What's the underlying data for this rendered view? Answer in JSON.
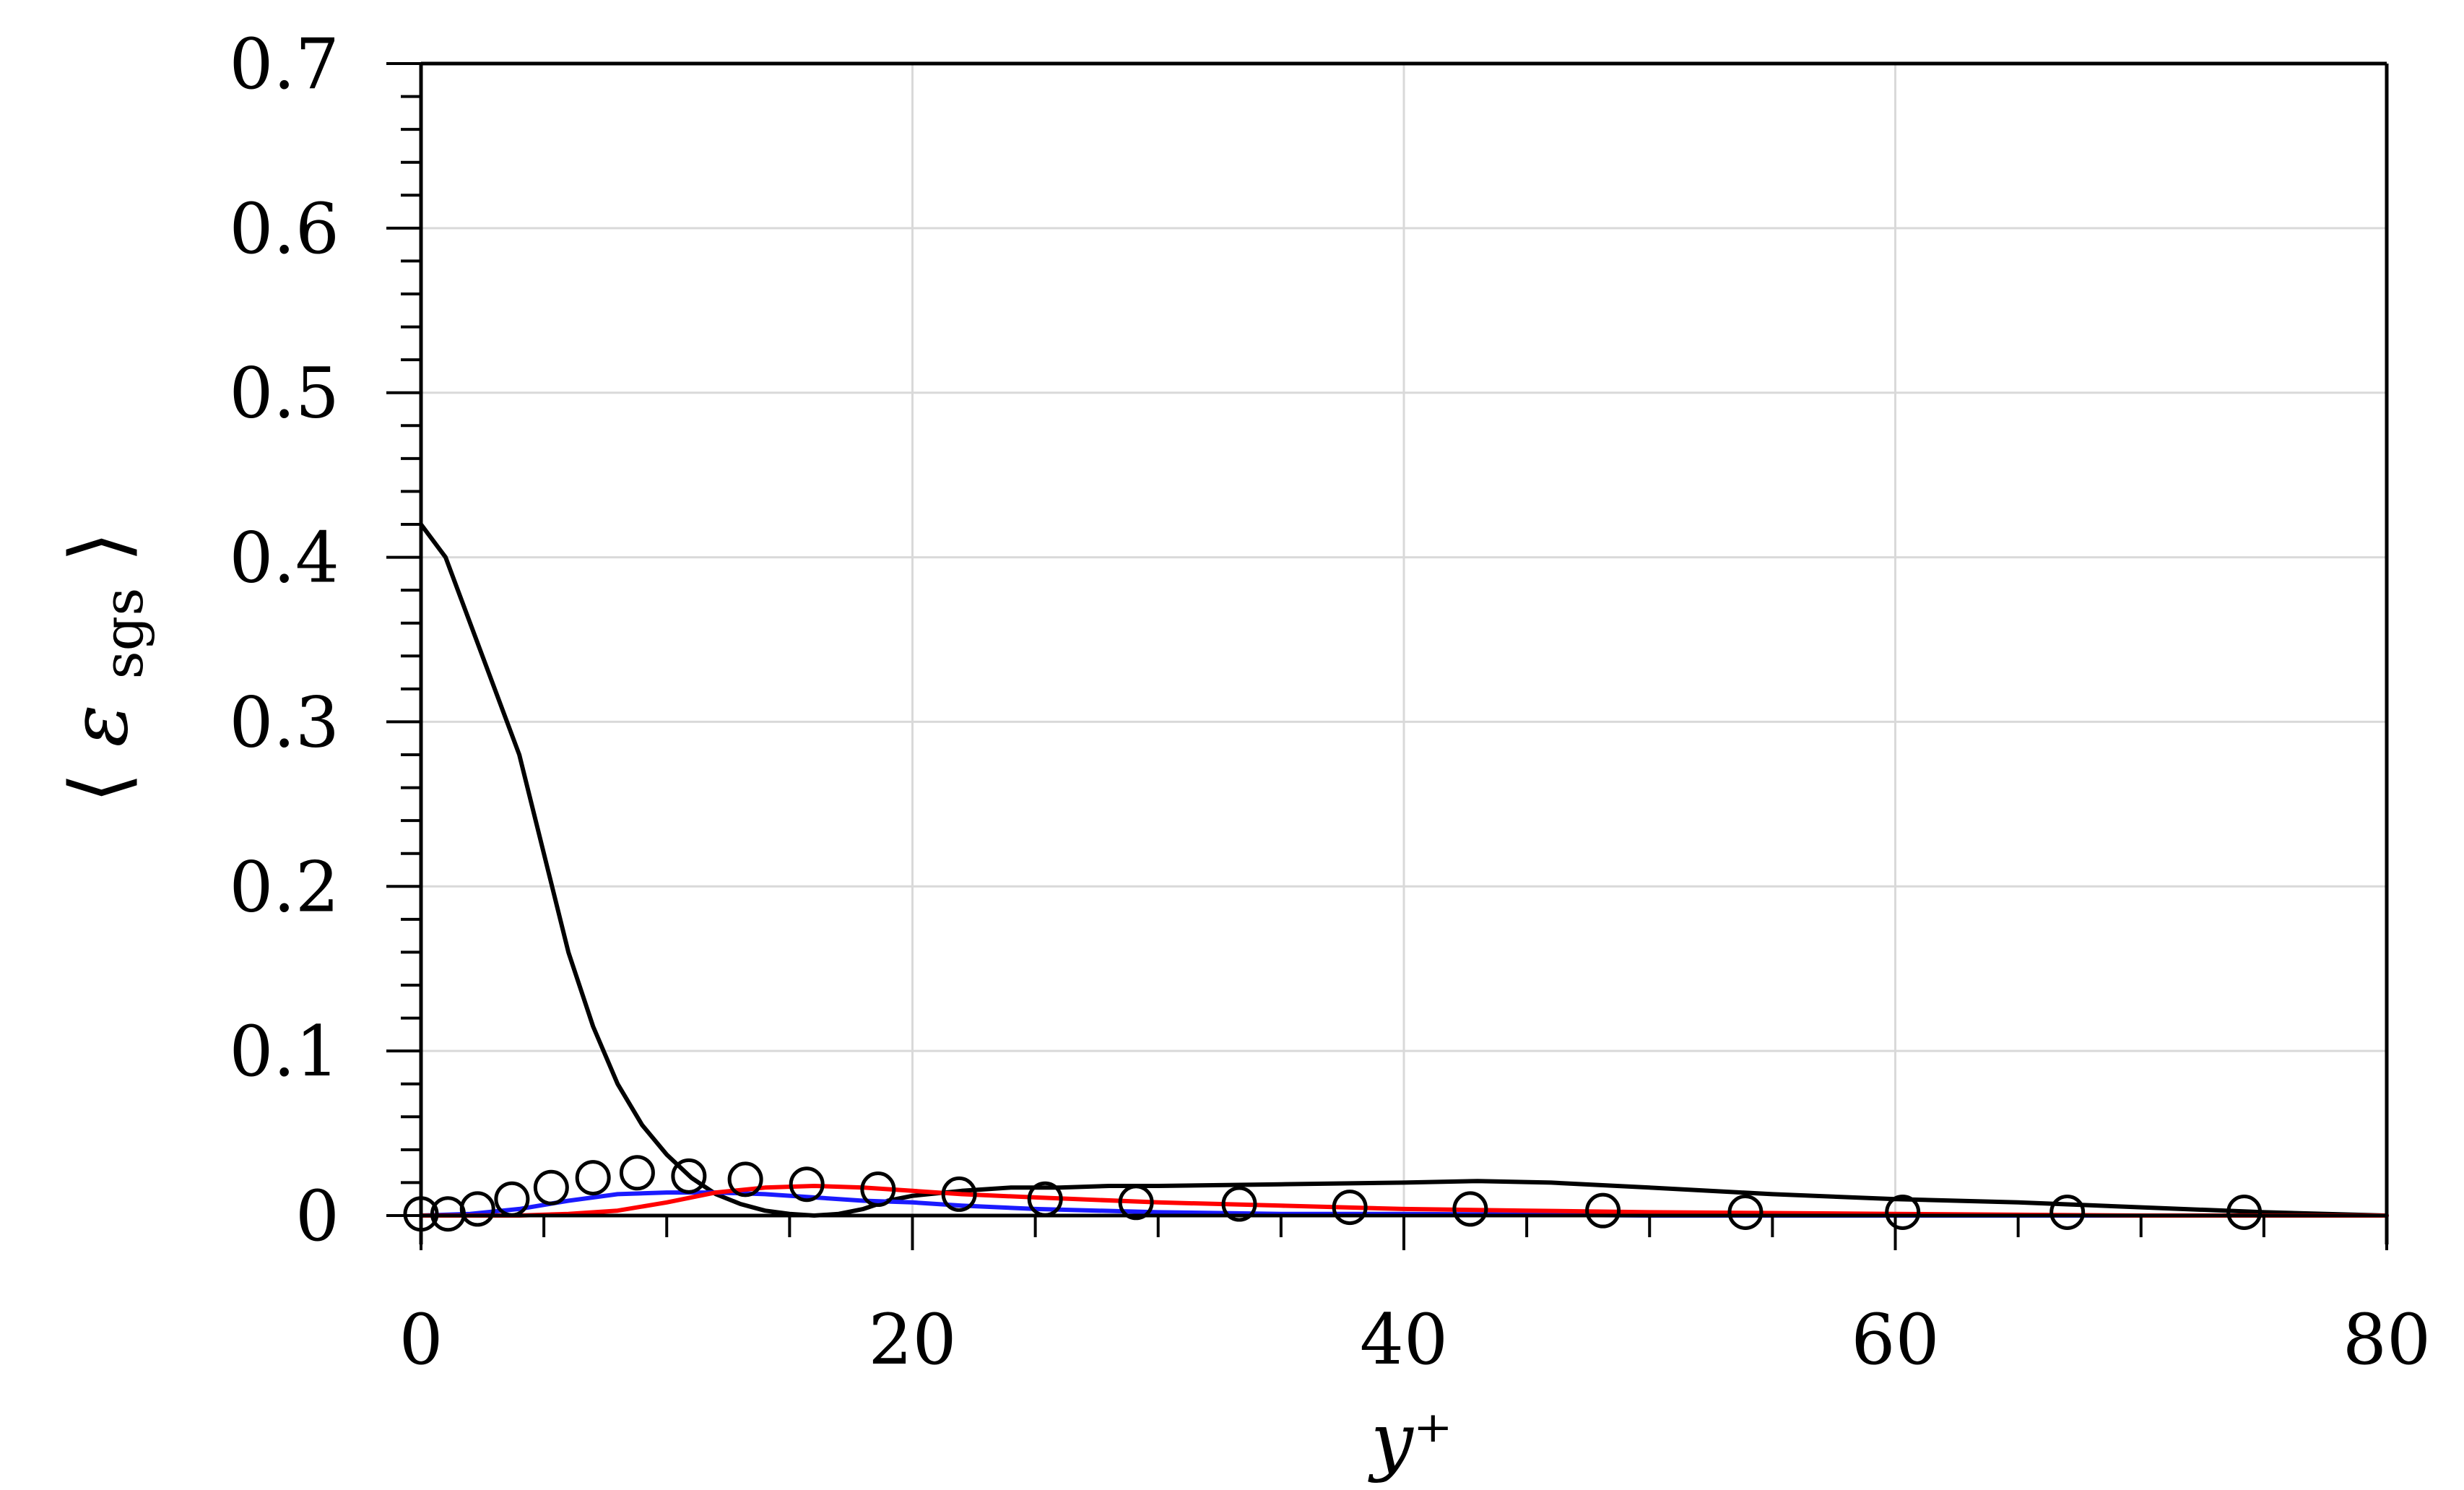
{
  "chart_data": {
    "type": "line",
    "title": "",
    "xlabel": "y⁺",
    "ylabel_parts": {
      "open": "⟨",
      "symbol": "ε",
      "subscript": "sgs",
      "close": "⟩"
    },
    "xlim": [
      0,
      80
    ],
    "ylim": [
      0,
      0.7
    ],
    "x_ticks": [
      0,
      20,
      40,
      60,
      80
    ],
    "x_tick_labels": [
      "0",
      "20",
      "40",
      "60",
      "80"
    ],
    "y_ticks": [
      0,
      0.1,
      0.2,
      0.3,
      0.4,
      0.5,
      0.6,
      0.7
    ],
    "y_tick_labels": [
      "0",
      "0.1",
      "0.2",
      "0.3",
      "0.4",
      "0.5",
      "0.6",
      "0.7"
    ],
    "grid": true,
    "legend": "none",
    "series": [
      {
        "style": "line",
        "color": "#000000",
        "x": [
          0,
          1,
          2,
          3,
          4,
          5,
          6,
          7,
          8,
          9,
          10,
          11,
          12,
          13,
          14,
          15,
          16,
          17,
          18,
          19,
          20,
          22,
          24,
          26,
          28,
          30,
          35,
          40,
          43,
          46,
          50,
          55,
          60,
          65,
          70,
          75,
          80
        ],
        "y": [
          0.42,
          0.4,
          0.36,
          0.32,
          0.28,
          0.22,
          0.16,
          0.115,
          0.08,
          0.055,
          0.037,
          0.023,
          0.013,
          0.007,
          0.003,
          0.001,
          0.0,
          0.001,
          0.004,
          0.009,
          0.012,
          0.015,
          0.017,
          0.017,
          0.018,
          0.018,
          0.019,
          0.02,
          0.021,
          0.02,
          0.017,
          0.013,
          0.01,
          0.008,
          0.005,
          0.002,
          0.0
        ]
      },
      {
        "style": "line",
        "color": "#1a1aff",
        "x": [
          0,
          2,
          4,
          6,
          8,
          10,
          12,
          14,
          16,
          18,
          20,
          22,
          25,
          30,
          35,
          40,
          50,
          60,
          70,
          80
        ],
        "y": [
          0.0,
          0.001,
          0.004,
          0.009,
          0.013,
          0.014,
          0.014,
          0.013,
          0.011,
          0.009,
          0.008,
          0.006,
          0.004,
          0.002,
          0.001,
          0.001,
          0.0,
          0.0,
          0.0,
          0.0
        ]
      },
      {
        "style": "line",
        "color": "#ff0000",
        "x": [
          0,
          2,
          4,
          6,
          8,
          10,
          12,
          14,
          16,
          18,
          20,
          22,
          25,
          30,
          35,
          40,
          45,
          50,
          60,
          70,
          80
        ],
        "y": [
          0.0,
          0.0,
          0.0,
          0.001,
          0.003,
          0.008,
          0.014,
          0.017,
          0.018,
          0.017,
          0.015,
          0.013,
          0.011,
          0.008,
          0.006,
          0.004,
          0.003,
          0.002,
          0.001,
          0.0,
          0.0
        ]
      },
      {
        "style": "markers",
        "marker": "open-circle",
        "color": "#000000",
        "x": [
          0,
          1.1,
          2.3,
          3.7,
          5.3,
          7.0,
          8.8,
          10.9,
          13.2,
          15.7,
          18.6,
          21.9,
          25.4,
          29.1,
          33.3,
          37.8,
          42.7,
          48.1,
          53.9,
          60.3,
          67.0,
          74.2
        ],
        "y": [
          0.001,
          0.001,
          0.004,
          0.01,
          0.017,
          0.023,
          0.026,
          0.024,
          0.022,
          0.019,
          0.016,
          0.013,
          0.01,
          0.008,
          0.007,
          0.005,
          0.004,
          0.003,
          0.002,
          0.002,
          0.002,
          0.002
        ]
      }
    ]
  }
}
